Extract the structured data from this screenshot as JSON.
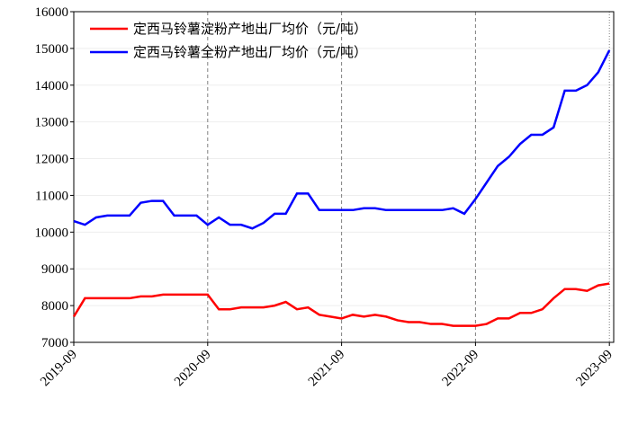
{
  "chart_data": {
    "type": "line",
    "x": [
      "2019-09",
      "2019-10",
      "2019-11",
      "2019-12",
      "2020-01",
      "2020-02",
      "2020-03",
      "2020-04",
      "2020-05",
      "2020-06",
      "2020-07",
      "2020-08",
      "2020-09",
      "2020-10",
      "2020-11",
      "2020-12",
      "2021-01",
      "2021-02",
      "2021-03",
      "2021-04",
      "2021-05",
      "2021-06",
      "2021-07",
      "2021-08",
      "2021-09",
      "2021-10",
      "2021-11",
      "2021-12",
      "2022-01",
      "2022-02",
      "2022-03",
      "2022-04",
      "2022-05",
      "2022-06",
      "2022-07",
      "2022-08",
      "2022-09",
      "2022-10",
      "2022-11",
      "2022-12",
      "2023-01",
      "2023-02",
      "2023-03",
      "2023-04",
      "2023-05",
      "2023-06",
      "2023-07",
      "2023-08",
      "2023-09"
    ],
    "series": [
      {
        "name": "定西马铃薯淀粉产地出厂均价（元/吨）",
        "color": "#ff0000",
        "values": [
          7700,
          8200,
          8200,
          8200,
          8200,
          8200,
          8250,
          8250,
          8300,
          8300,
          8300,
          8300,
          8300,
          7900,
          7900,
          7950,
          7950,
          7950,
          8000,
          8100,
          7900,
          7950,
          7750,
          7700,
          7650,
          7750,
          7700,
          7750,
          7700,
          7600,
          7550,
          7550,
          7500,
          7500,
          7450,
          7450,
          7450,
          7500,
          7650,
          7650,
          7800,
          7800,
          7900,
          8200,
          8450,
          8450,
          8400,
          8550,
          8600
        ]
      },
      {
        "name": "定西马铃薯全粉产地出厂均价（元/吨）",
        "color": "#0000ff",
        "values": [
          10300,
          10200,
          10400,
          10450,
          10450,
          10450,
          10800,
          10850,
          10850,
          10450,
          10450,
          10450,
          10200,
          10400,
          10200,
          10200,
          10100,
          10250,
          10500,
          10500,
          11050,
          11050,
          10600,
          10600,
          10600,
          10600,
          10650,
          10650,
          10600,
          10600,
          10600,
          10600,
          10600,
          10600,
          10650,
          10500,
          10900,
          11350,
          11800,
          12050,
          12400,
          12650,
          12650,
          12850,
          13850,
          13850,
          14000,
          14350,
          14950
        ]
      }
    ],
    "ylim": [
      7000,
      16000
    ],
    "yticks": [
      7000,
      8000,
      9000,
      10000,
      11000,
      12000,
      13000,
      14000,
      15000,
      16000
    ],
    "legend": "upper left"
  }
}
